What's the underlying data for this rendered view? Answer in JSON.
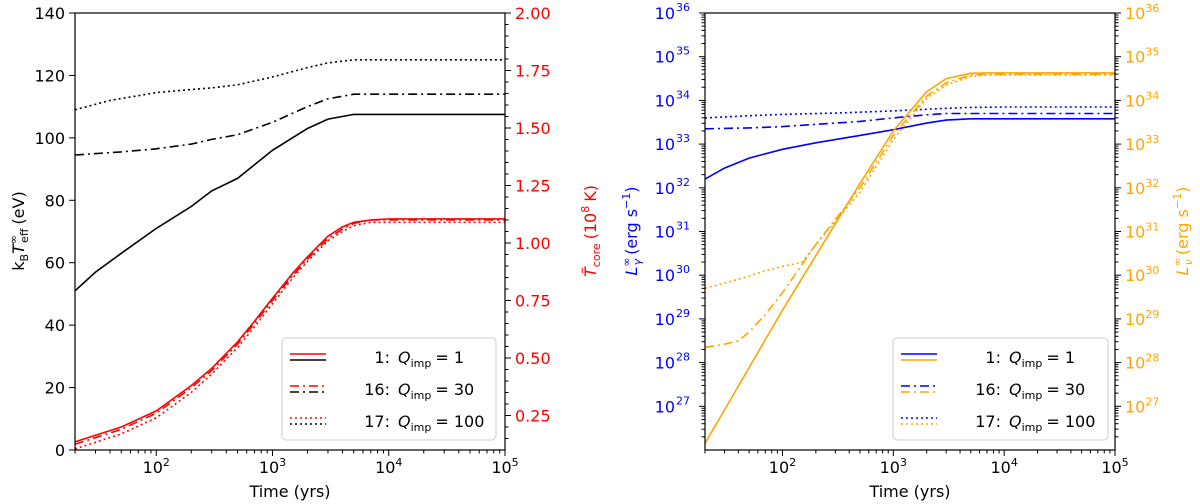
{
  "chart_data": [
    {
      "type": "line",
      "xlabel": "Time (yrs)",
      "ylabel": "k_B T_eff^∞ (eV)",
      "ylabel_right": "T̃_core (10^8 K)",
      "xscale": "log",
      "xlim": [
        20,
        100000
      ],
      "ylim": [
        0,
        140
      ],
      "ylim_right": [
        0.1,
        2.0
      ],
      "x_ticks": [
        {
          "value": 100,
          "base": "10",
          "exp": "2"
        },
        {
          "value": 1000,
          "base": "10",
          "exp": "3"
        },
        {
          "value": 10000,
          "base": "10",
          "exp": "4"
        },
        {
          "value": 100000,
          "base": "10",
          "exp": "5"
        }
      ],
      "y_ticks": [
        "0",
        "20",
        "40",
        "60",
        "80",
        "100",
        "120",
        "140"
      ],
      "y_ticks_right": [
        "0.25",
        "0.50",
        "0.75",
        "1.00",
        "1.25",
        "1.50",
        "1.75",
        "2.00"
      ],
      "colors": {
        "left_axis": "#000000",
        "right_axis": "#ff0000"
      },
      "series": [
        {
          "name": "T_eff Q_imp=1",
          "axis": "left",
          "color": "#000000",
          "dash": "solid",
          "x": [
            20,
            30,
            50,
            100,
            200,
            300,
            500,
            1000,
            2000,
            3000,
            5000,
            10000,
            100000
          ],
          "y": [
            51,
            57,
            63,
            71,
            78,
            83,
            87,
            96,
            103,
            106,
            107.5,
            107.5,
            107.5
          ]
        },
        {
          "name": "T_eff Q_imp=30",
          "axis": "left",
          "color": "#000000",
          "dash": "dashdot",
          "x": [
            20,
            50,
            100,
            200,
            300,
            500,
            1000,
            2000,
            3000,
            5000,
            10000,
            100000
          ],
          "y": [
            94.5,
            95.5,
            96.5,
            98,
            99.5,
            101,
            105,
            110,
            112.5,
            114,
            114,
            114
          ]
        },
        {
          "name": "T_eff Q_imp=100",
          "axis": "left",
          "color": "#000000",
          "dash": "dotted",
          "x": [
            20,
            40,
            70,
            100,
            200,
            300,
            500,
            1000,
            2000,
            3000,
            5000,
            10000,
            100000
          ],
          "y": [
            109,
            112,
            113.5,
            114.5,
            115.5,
            116,
            117,
            119.5,
            122.5,
            124,
            125,
            125,
            125
          ]
        },
        {
          "name": "T_core Q_imp=1",
          "axis": "right",
          "color": "#ff0000",
          "dash": "solid",
          "x": [
            20,
            50,
            100,
            200,
            300,
            500,
            700,
            1000,
            1500,
            2000,
            3000,
            4000,
            5000,
            7000,
            10000,
            100000
          ],
          "y": [
            0.135,
            0.2,
            0.27,
            0.38,
            0.455,
            0.57,
            0.66,
            0.76,
            0.87,
            0.94,
            1.03,
            1.07,
            1.09,
            1.1,
            1.105,
            1.105
          ]
        },
        {
          "name": "T_core Q_imp=30",
          "axis": "right",
          "color": "#ff0000",
          "dash": "dashdot",
          "x": [
            20,
            50,
            100,
            200,
            300,
            500,
            700,
            1000,
            1500,
            2000,
            3000,
            4000,
            5000,
            7000,
            10000,
            100000
          ],
          "y": [
            0.125,
            0.19,
            0.26,
            0.37,
            0.445,
            0.56,
            0.65,
            0.75,
            0.86,
            0.93,
            1.02,
            1.06,
            1.085,
            1.1,
            1.1,
            1.1
          ]
        },
        {
          "name": "T_core Q_imp=100",
          "axis": "right",
          "color": "#ff0000",
          "dash": "dotted",
          "x": [
            20,
            50,
            100,
            200,
            300,
            500,
            700,
            1000,
            1500,
            2000,
            3000,
            4000,
            5000,
            7000,
            10000,
            100000
          ],
          "y": [
            0.105,
            0.17,
            0.24,
            0.35,
            0.43,
            0.545,
            0.635,
            0.735,
            0.85,
            0.92,
            1.01,
            1.05,
            1.075,
            1.09,
            1.09,
            1.09
          ]
        }
      ],
      "legend": {
        "placement": "lower right",
        "entries": [
          {
            "num": "1:",
            "q": "Q",
            "sub": "imp",
            "val": "= 1",
            "dash": "solid",
            "colors": [
              "#ff0000",
              "#000000"
            ]
          },
          {
            "num": "16:",
            "q": "Q",
            "sub": "imp",
            "val": "= 30",
            "dash": "dashdot",
            "colors": [
              "#ff0000",
              "#000000"
            ]
          },
          {
            "num": "17:",
            "q": "Q",
            "sub": "imp",
            "val": "= 100",
            "dash": "dotted",
            "colors": [
              "#ff0000",
              "#000000"
            ]
          }
        ]
      }
    },
    {
      "type": "line",
      "xlabel": "Time (yrs)",
      "ylabel": "L_γ^∞ (erg s^-1)",
      "ylabel_right": "L_ν^∞ (erg s^-1)",
      "xscale": "log",
      "yscale": "log",
      "xlim": [
        20,
        100000
      ],
      "ylim_exp": [
        26,
        36
      ],
      "x_ticks": [
        {
          "value": 100,
          "base": "10",
          "exp": "2"
        },
        {
          "value": 1000,
          "base": "10",
          "exp": "3"
        },
        {
          "value": 10000,
          "base": "10",
          "exp": "4"
        },
        {
          "value": 100000,
          "base": "10",
          "exp": "5"
        }
      ],
      "y_ticks": [
        {
          "exp": 27,
          "base": "10",
          "label": "27"
        },
        {
          "exp": 28,
          "base": "10",
          "label": "28"
        },
        {
          "exp": 29,
          "base": "10",
          "label": "29"
        },
        {
          "exp": 30,
          "base": "10",
          "label": "30"
        },
        {
          "exp": 31,
          "base": "10",
          "label": "31"
        },
        {
          "exp": 32,
          "base": "10",
          "label": "32"
        },
        {
          "exp": 33,
          "base": "10",
          "label": "33"
        },
        {
          "exp": 34,
          "base": "10",
          "label": "34"
        },
        {
          "exp": 35,
          "base": "10",
          "label": "35"
        },
        {
          "exp": 36,
          "base": "10",
          "label": "36"
        }
      ],
      "colors": {
        "left_axis": "#0000ff",
        "right_axis": "#ffa500"
      },
      "series": [
        {
          "name": "L_gamma Q_imp=1",
          "color": "#0000ff",
          "dash": "solid",
          "x": [
            20,
            30,
            50,
            100,
            200,
            500,
            1000,
            2000,
            3000,
            5000,
            10000,
            100000
          ],
          "log10_y": [
            32.2,
            32.45,
            32.68,
            32.88,
            33.03,
            33.2,
            33.33,
            33.48,
            33.55,
            33.58,
            33.58,
            33.58
          ]
        },
        {
          "name": "L_gamma Q_imp=30",
          "color": "#0000ff",
          "dash": "dashdot",
          "x": [
            20,
            50,
            100,
            200,
            500,
            1000,
            2000,
            3000,
            5000,
            10000,
            100000
          ],
          "log10_y": [
            33.35,
            33.37,
            33.4,
            33.45,
            33.52,
            33.6,
            33.67,
            33.7,
            33.7,
            33.7,
            33.7
          ]
        },
        {
          "name": "L_gamma Q_imp=100",
          "color": "#0000ff",
          "dash": "dotted",
          "x": [
            20,
            50,
            100,
            300,
            1000,
            3000,
            5000,
            10000,
            100000
          ],
          "log10_y": [
            33.6,
            33.65,
            33.68,
            33.71,
            33.76,
            33.82,
            33.84,
            33.85,
            33.85
          ]
        },
        {
          "name": "L_nu Q_imp=1",
          "color": "#ffa500",
          "dash": "solid",
          "x": [
            20,
            100,
            500,
            1000,
            2000,
            3000,
            5000,
            7000,
            10000,
            100000
          ],
          "log10_y": [
            26.15,
            29.2,
            32.1,
            33.3,
            34.2,
            34.5,
            34.62,
            34.63,
            34.63,
            34.63
          ]
        },
        {
          "name": "L_nu Q_imp=30",
          "color": "#ffa500",
          "dash": "dashdot",
          "x": [
            20,
            30,
            40,
            50,
            70,
            100,
            200,
            500,
            1000,
            2000,
            3000,
            5000,
            7000,
            10000,
            100000
          ],
          "log10_y": [
            28.35,
            28.42,
            28.5,
            28.7,
            29.1,
            29.6,
            30.7,
            32.0,
            33.2,
            34.1,
            34.4,
            34.58,
            34.6,
            34.6,
            34.6
          ]
        },
        {
          "name": "L_nu Q_imp=100",
          "color": "#ffa500",
          "dash": "dotted",
          "x": [
            20,
            30,
            50,
            70,
            100,
            150,
            200,
            500,
            1000,
            2000,
            3000,
            5000,
            7000,
            10000,
            100000
          ],
          "log10_y": [
            29.7,
            29.82,
            29.98,
            30.1,
            30.2,
            30.3,
            30.7,
            31.9,
            33.1,
            34.05,
            34.35,
            34.55,
            34.58,
            34.58,
            34.58
          ]
        }
      ],
      "legend": {
        "placement": "lower right",
        "entries": [
          {
            "num": "1:",
            "q": "Q",
            "sub": "imp",
            "val": "= 1",
            "dash": "solid",
            "colors": [
              "#0000ff",
              "#ffa500"
            ]
          },
          {
            "num": "16:",
            "q": "Q",
            "sub": "imp",
            "val": "= 30",
            "dash": "dashdot",
            "colors": [
              "#0000ff",
              "#ffa500"
            ]
          },
          {
            "num": "17:",
            "q": "Q",
            "sub": "imp",
            "val": "= 100",
            "dash": "dotted",
            "colors": [
              "#0000ff",
              "#ffa500"
            ]
          }
        ]
      }
    }
  ],
  "labels": {
    "left_ylabel": {
      "a": "k",
      "a_sub": "B",
      "b": "T",
      "b_sup": "∞",
      "b_sub": "eff",
      "c": "(eV)"
    },
    "left_ylabel_right": {
      "a": "T̃",
      "a_sub": "core",
      "b": "(10",
      "b_sup": "8",
      "c": "K)"
    },
    "right_ylabel": {
      "a": "L",
      "a_sup": "∞",
      "a_sub": "γ",
      "b": "(erg s",
      "b_sup": "−1",
      "c": ")"
    },
    "right_ylabel_right": {
      "a": "L",
      "a_sup": "∞",
      "a_sub": "ν",
      "b": "(erg s",
      "b_sup": "−1",
      "c": ")"
    }
  }
}
